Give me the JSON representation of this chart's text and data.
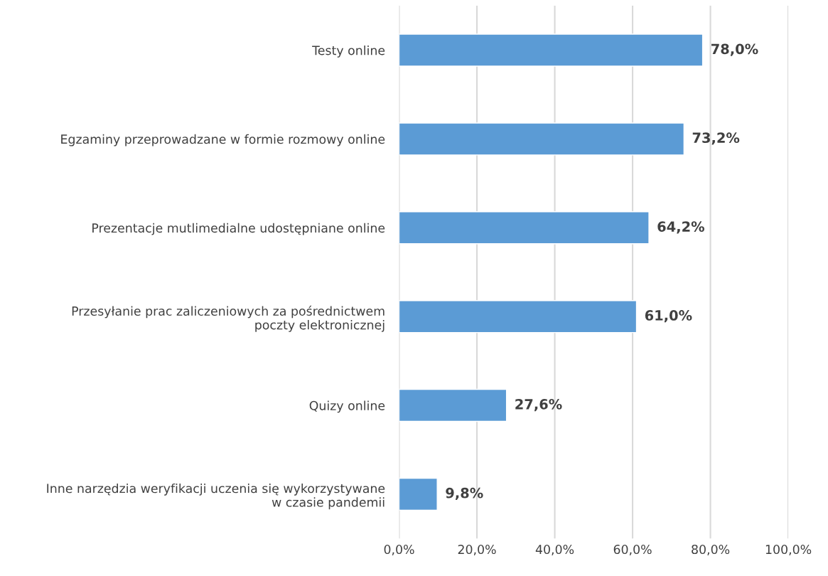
{
  "chart_data": {
    "type": "bar",
    "orientation": "horizontal",
    "categories": [
      "Testy online",
      "Egzaminy przeprowadzane w formie rozmowy online",
      "Prezentacje mutlimedialne udostępniane online",
      "Przesyłanie prac zaliczeniowych za pośrednictwem\npoczty elektronicznej",
      "Quizy online",
      "Inne narzędzia weryfikacji uczenia się wykorzystywane\nw czasie pandemii"
    ],
    "values": [
      78.0,
      73.2,
      64.2,
      61.0,
      27.6,
      9.8
    ],
    "value_labels": [
      "78,0%",
      "73,2%",
      "64,2%",
      "61,0%",
      "27,6%",
      "9,8%"
    ],
    "color": "#5b9bd5",
    "xlim": [
      0,
      100
    ],
    "xticks": [
      {
        "value": 0,
        "label": "0,0%"
      },
      {
        "value": 20,
        "label": "20,0%"
      },
      {
        "value": 40,
        "label": "40,0%"
      },
      {
        "value": 60,
        "label": "60,0%"
      },
      {
        "value": 80,
        "label": "80,0%"
      },
      {
        "value": 100,
        "label": "100,0%"
      }
    ],
    "grid": "x"
  }
}
